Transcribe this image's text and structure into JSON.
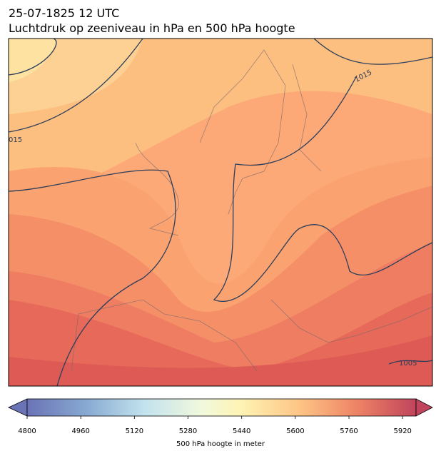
{
  "header": {
    "date": "25-07-1825 12 UTC",
    "title": "Luchtdruk op zeeniveau in hPa en 500 hPa hoogte"
  },
  "map": {
    "contour_labels": [
      "1015",
      "015",
      "1005"
    ]
  },
  "colorbar": {
    "clim": [
      4800,
      5960
    ],
    "ticks": [
      4800,
      4960,
      5120,
      5280,
      5440,
      5600,
      5760,
      5920
    ],
    "label": "500 hPa hoogte in meter"
  }
}
